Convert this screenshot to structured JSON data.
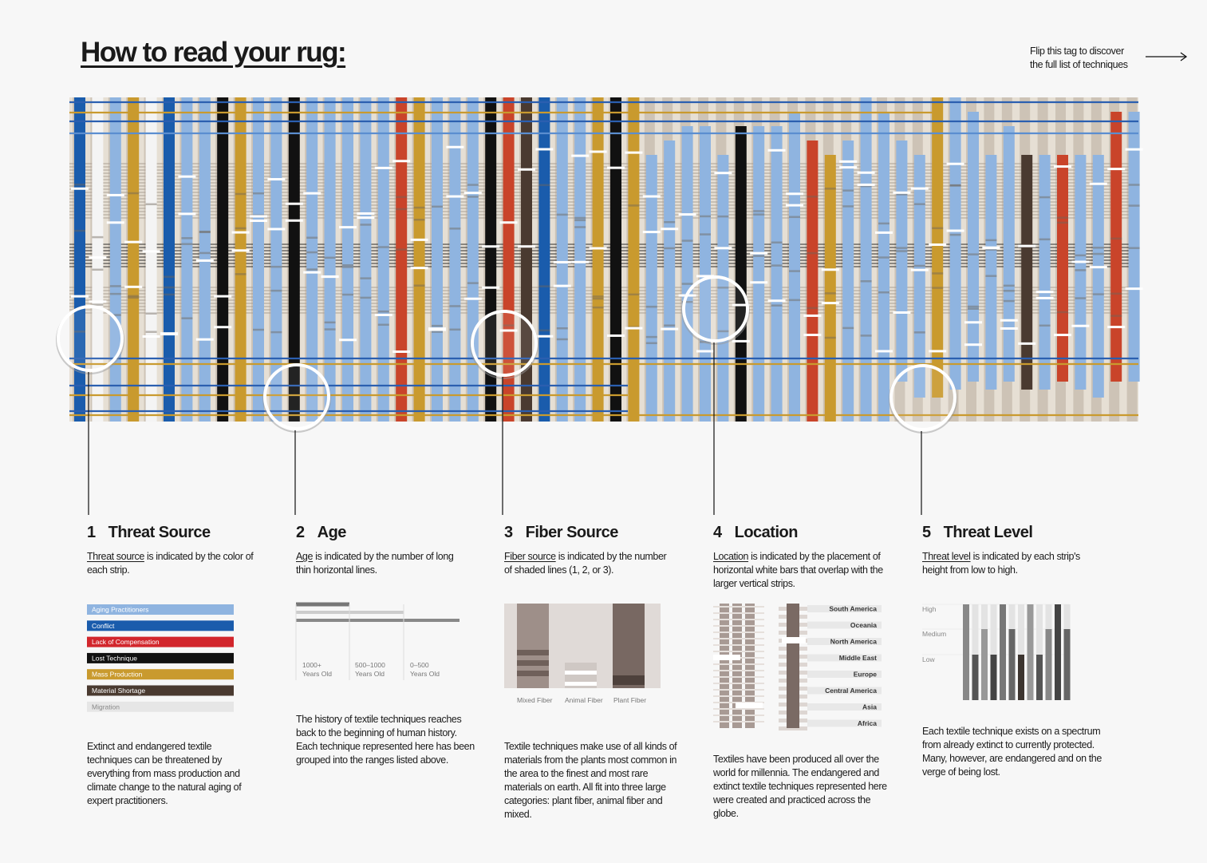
{
  "header": {
    "title": "How to read your rug:",
    "note": [
      "Flip this tag to discover",
      "the full list of techniques"
    ]
  },
  "sections": [
    {
      "number": "1",
      "title": "Threat Source",
      "term": "Threat source",
      "description": " is indicated by the color of each strip.",
      "legend": [
        {
          "label": "Aging Practitioners",
          "color": "#8fb4e0"
        },
        {
          "label": "Conflict",
          "color": "#1a5cac"
        },
        {
          "label": "Lack of Compensation",
          "color": "#d2262c"
        },
        {
          "label": "Lost Technique",
          "color": "#111111"
        },
        {
          "label": "Mass Production",
          "color": "#c99a2e"
        },
        {
          "label": "Material Shortage",
          "color": "#4a3a30"
        },
        {
          "label": "Migration",
          "color": "#e6e6e6"
        }
      ],
      "body": "Extinct and endangered textile techniques can be threatened by everything from mass production and climate change to the natural aging of expert practitioners."
    },
    {
      "number": "2",
      "title": "Age",
      "term": "Age",
      "description": " is indicated by the number of long thin horizontal lines.",
      "ranges": [
        {
          "value": "1000+",
          "unit": "Years Old"
        },
        {
          "value": "500–1000",
          "unit": "Years Old"
        },
        {
          "value": "0–500",
          "unit": "Years Old"
        }
      ],
      "body": "The history of textile techniques reaches back to the beginning of human history. Each technique represented here has been grouped into the ranges listed above."
    },
    {
      "number": "3",
      "title": "Fiber Source",
      "term": "Fiber source",
      "description": " is indicated by the number of shaded lines (1, 2, or 3).",
      "legend": [
        "Mixed Fiber",
        "Animal Fiber",
        "Plant Fiber"
      ],
      "body": "Textile techniques make use of all kinds of materials from the plants most common in the area to the finest and most rare materials on earth. All fit into three large categories: plant fiber, animal fiber and mixed."
    },
    {
      "number": "4",
      "title": "Location",
      "term": "Location",
      "description": " is indicated by the placement of horizontal white bars that overlap with the larger vertical strips.",
      "regions": [
        "South America",
        "Oceania",
        "North America",
        "Middle East",
        "Europe",
        "Central America",
        "Asia",
        "Africa"
      ],
      "body": "Textiles have been produced all over the world for millennia. The endangered and extinct textile techniques represented here were created and practiced across the globe."
    },
    {
      "number": "5",
      "title": "Threat Level",
      "term": "Threat level",
      "description": " is indicated by each strip's height from low to high.",
      "levels": [
        "High",
        "Medium",
        "Low"
      ],
      "body": "Each textile technique exists on a spectrum from already extinct to currently protected. Many, however, are endangered and on the verge of being lost."
    }
  ]
}
